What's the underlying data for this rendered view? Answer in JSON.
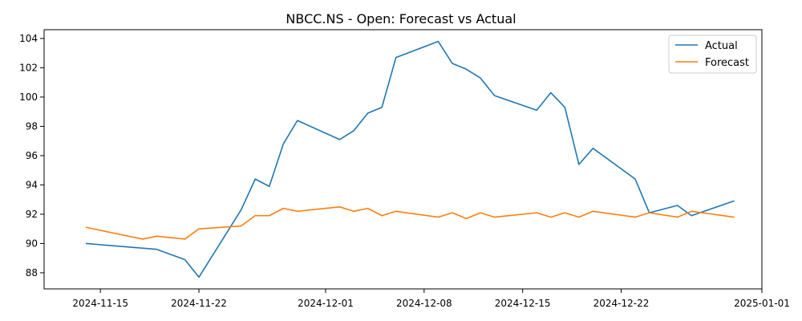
{
  "chart_data": {
    "type": "line",
    "title": "NBCC.NS - Open: Forecast vs Actual",
    "xlabel": "",
    "ylabel": "",
    "x_type": "date",
    "xlim": [
      "2024-11-11",
      "2025-01-01"
    ],
    "ylim": [
      86.9,
      104.6
    ],
    "x_ticks": [
      "2024-11-15",
      "2024-11-22",
      "2024-12-01",
      "2024-12-08",
      "2024-12-15",
      "2024-12-22",
      "2025-01-01"
    ],
    "y_ticks": [
      88,
      90,
      92,
      94,
      96,
      98,
      100,
      102,
      104
    ],
    "grid": false,
    "legend_position": "top-right",
    "series": [
      {
        "name": "Actual",
        "color": "#1f77b4",
        "points": [
          [
            "2024-11-14",
            90.0
          ],
          [
            "2024-11-19",
            89.6
          ],
          [
            "2024-11-21",
            88.9
          ],
          [
            "2024-11-22",
            87.7
          ],
          [
            "2024-11-25",
            92.3
          ],
          [
            "2024-11-26",
            94.4
          ],
          [
            "2024-11-27",
            93.9
          ],
          [
            "2024-11-28",
            96.8
          ],
          [
            "2024-11-29",
            98.4
          ],
          [
            "2024-12-02",
            97.1
          ],
          [
            "2024-12-03",
            97.7
          ],
          [
            "2024-12-04",
            98.9
          ],
          [
            "2024-12-05",
            99.3
          ],
          [
            "2024-12-06",
            102.7
          ],
          [
            "2024-12-09",
            103.8
          ],
          [
            "2024-12-10",
            102.3
          ],
          [
            "2024-12-11",
            101.9
          ],
          [
            "2024-12-12",
            101.3
          ],
          [
            "2024-12-13",
            100.1
          ],
          [
            "2024-12-16",
            99.1
          ],
          [
            "2024-12-17",
            100.3
          ],
          [
            "2024-12-18",
            99.3
          ],
          [
            "2024-12-19",
            95.4
          ],
          [
            "2024-12-20",
            96.5
          ],
          [
            "2024-12-23",
            94.4
          ],
          [
            "2024-12-24",
            92.1
          ],
          [
            "2024-12-26",
            92.6
          ],
          [
            "2024-12-27",
            91.9
          ],
          [
            "2024-12-30",
            92.9
          ]
        ]
      },
      {
        "name": "Forecast",
        "color": "#ff7f0e",
        "points": [
          [
            "2024-11-14",
            91.1
          ],
          [
            "2024-11-18",
            90.3
          ],
          [
            "2024-11-19",
            90.5
          ],
          [
            "2024-11-21",
            90.3
          ],
          [
            "2024-11-22",
            91.0
          ],
          [
            "2024-11-25",
            91.2
          ],
          [
            "2024-11-26",
            91.9
          ],
          [
            "2024-11-27",
            91.9
          ],
          [
            "2024-11-28",
            92.4
          ],
          [
            "2024-11-29",
            92.2
          ],
          [
            "2024-12-02",
            92.5
          ],
          [
            "2024-12-03",
            92.2
          ],
          [
            "2024-12-04",
            92.4
          ],
          [
            "2024-12-05",
            91.9
          ],
          [
            "2024-12-06",
            92.2
          ],
          [
            "2024-12-09",
            91.8
          ],
          [
            "2024-12-10",
            92.1
          ],
          [
            "2024-12-11",
            91.7
          ],
          [
            "2024-12-12",
            92.1
          ],
          [
            "2024-12-13",
            91.8
          ],
          [
            "2024-12-16",
            92.1
          ],
          [
            "2024-12-17",
            91.8
          ],
          [
            "2024-12-18",
            92.1
          ],
          [
            "2024-12-19",
            91.8
          ],
          [
            "2024-12-20",
            92.2
          ],
          [
            "2024-12-23",
            91.8
          ],
          [
            "2024-12-24",
            92.1
          ],
          [
            "2024-12-26",
            91.8
          ],
          [
            "2024-12-27",
            92.2
          ],
          [
            "2024-12-30",
            91.8
          ]
        ]
      }
    ]
  }
}
